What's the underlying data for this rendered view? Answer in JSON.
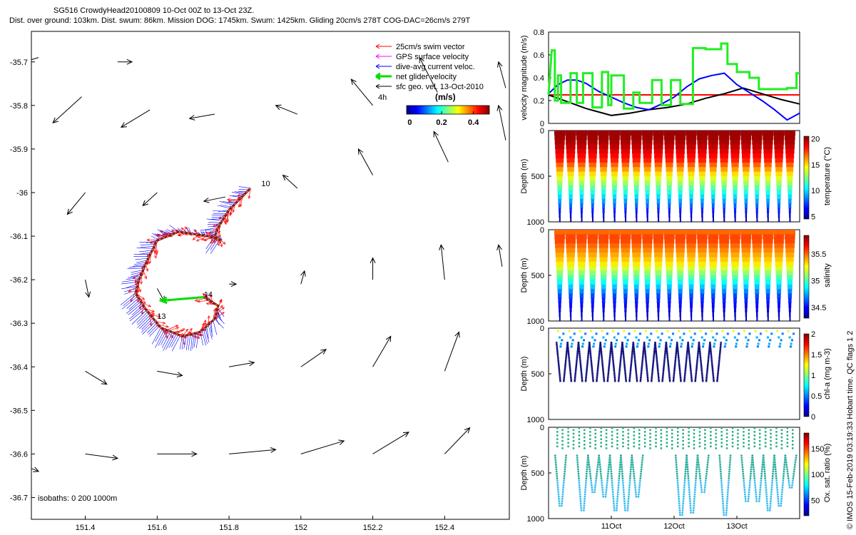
{
  "header": {
    "title_line1": "SG516 CrowdyHead20100809 10-Oct 00Z to 13-Oct 23Z.",
    "title_line2": "Dist. over ground: 103km. Dist. swum: 86km. Mission DOG: 1745km. Swum: 1425km. Gliding 20cm/s 278T COG-DAC=26cm/s 279T"
  },
  "credit": "© IMOS 15-Feb-2019 03:19:33 Hobart time. QC flags 1  2",
  "colors": {
    "swim": "#ff0000",
    "gps": "#ff00ff",
    "dac": "#0000ff",
    "net": "#00dd00",
    "sfc": "#000000",
    "track": "#8b1a1a",
    "threshold": "#ff0000"
  },
  "chart_data": [
    {
      "id": "map",
      "type": "scatter",
      "xlim": [
        151.25,
        152.58
      ],
      "ylim": [
        -36.75,
        -35.63
      ],
      "xticks": [
        "151.4",
        "151.6",
        "151.8",
        "152",
        "152.2",
        "152.4"
      ],
      "yticks": [
        "-35.7",
        "-35.8",
        "-35.9",
        "-36",
        "-36.1",
        "-36.2",
        "-36.3",
        "-36.4",
        "-36.5",
        "-36.6",
        "-36.7"
      ],
      "xtick_values": [
        151.4,
        151.6,
        151.8,
        152.0,
        152.2,
        152.4
      ],
      "ytick_values": [
        -35.7,
        -35.8,
        -35.9,
        -36.0,
        -36.1,
        -36.2,
        -36.3,
        -36.4,
        -36.5,
        -36.6,
        -36.7
      ],
      "legend": {
        "items": [
          "25cm/s swim vector",
          "GPS surface velocity",
          "dive-avg current veloc.",
          "net glider velocity",
          "sfc geo. vel. 13-Oct-2010"
        ],
        "extra_label": "4h"
      },
      "colorbar": {
        "label": "(m/s)",
        "ticks": [
          "0",
          "0.2",
          "0.4"
        ],
        "tick_values": [
          0,
          0.2,
          0.4
        ],
        "range": [
          -0.02,
          0.5
        ]
      },
      "isobaths_label": "isobaths: 0   200   1000m",
      "track_labels": [
        {
          "text": "10",
          "lon": 151.89,
          "lat": -35.985
        },
        {
          "text": "14",
          "lon": 151.73,
          "lat": -36.24
        },
        {
          "text": "13",
          "lon": 151.6,
          "lat": -36.29
        }
      ],
      "track": [
        [
          151.86,
          -35.99
        ],
        [
          151.8,
          -36.04
        ],
        [
          151.77,
          -36.08
        ],
        [
          151.76,
          -36.1
        ],
        [
          151.78,
          -36.11
        ],
        [
          151.74,
          -36.1
        ],
        [
          151.66,
          -36.09
        ],
        [
          151.6,
          -36.11
        ],
        [
          151.57,
          -36.16
        ],
        [
          151.55,
          -36.2
        ],
        [
          151.54,
          -36.23
        ],
        [
          151.57,
          -36.27
        ],
        [
          151.61,
          -36.31
        ],
        [
          151.67,
          -36.33
        ],
        [
          151.72,
          -36.32
        ],
        [
          151.76,
          -36.29
        ],
        [
          151.77,
          -36.26
        ],
        [
          151.73,
          -36.24
        ]
      ],
      "sfc_vectors": [
        [
          151.27,
          -35.69,
          -0.04,
          -0.01
        ],
        [
          151.49,
          -35.7,
          0.04,
          0.0
        ],
        [
          151.39,
          -35.78,
          -0.08,
          -0.06
        ],
        [
          151.58,
          -35.81,
          -0.08,
          -0.04
        ],
        [
          151.76,
          -35.82,
          -0.07,
          -0.01
        ],
        [
          151.99,
          -35.82,
          -0.06,
          0.02
        ],
        [
          152.2,
          -35.8,
          -0.06,
          0.06
        ],
        [
          152.38,
          -35.77,
          -0.05,
          0.08
        ],
        [
          152.57,
          -35.76,
          -0.02,
          0.06
        ],
        [
          152.57,
          -35.88,
          -0.02,
          0.08
        ],
        [
          152.41,
          -35.93,
          -0.04,
          0.07
        ],
        [
          152.2,
          -35.96,
          -0.04,
          0.06
        ],
        [
          151.99,
          -35.99,
          -0.04,
          0.03
        ],
        [
          151.79,
          -36.01,
          -0.06,
          -0.01
        ],
        [
          151.6,
          -36.0,
          -0.04,
          -0.03
        ],
        [
          151.4,
          -36.0,
          -0.05,
          -0.05
        ],
        [
          151.4,
          -36.2,
          0.01,
          -0.04
        ],
        [
          151.6,
          -36.22,
          0.02,
          -0.03
        ],
        [
          151.8,
          -36.21,
          0.02,
          0.0
        ],
        [
          152.0,
          -36.21,
          0.01,
          0.03
        ],
        [
          152.2,
          -36.2,
          0.0,
          0.05
        ],
        [
          152.4,
          -36.2,
          -0.01,
          0.08
        ],
        [
          152.56,
          -36.17,
          -0.01,
          0.05
        ],
        [
          151.4,
          -36.41,
          0.06,
          -0.03
        ],
        [
          151.6,
          -36.41,
          0.07,
          -0.01
        ],
        [
          151.8,
          -36.4,
          0.07,
          0.01
        ],
        [
          152.0,
          -36.4,
          0.07,
          0.04
        ],
        [
          152.2,
          -36.4,
          0.05,
          0.07
        ],
        [
          152.4,
          -36.41,
          0.04,
          0.09
        ],
        [
          151.4,
          -36.6,
          0.09,
          -0.01
        ],
        [
          151.6,
          -36.6,
          0.11,
          0.0
        ],
        [
          151.8,
          -36.6,
          0.13,
          0.01
        ],
        [
          152.0,
          -36.6,
          0.12,
          0.03
        ],
        [
          152.2,
          -36.6,
          0.1,
          0.05
        ],
        [
          152.4,
          -36.6,
          0.07,
          0.06
        ],
        [
          151.24,
          -36.63,
          0.03,
          -0.01
        ]
      ]
    },
    {
      "id": "velocity",
      "type": "line",
      "ylabel": "velocity magnitude (m/s)",
      "ylim": [
        0,
        0.8
      ],
      "yticks": [
        "0",
        "0.2",
        "0.4",
        "0.6",
        "0.8"
      ],
      "ytick_values": [
        0,
        0.2,
        0.4,
        0.6,
        0.8
      ],
      "xlim": [
        10.0,
        14.0
      ],
      "series": [
        {
          "color": "#ff0000",
          "width": 2,
          "x": [
            10.0,
            14.0
          ],
          "y": [
            0.25,
            0.25
          ]
        },
        {
          "color": "#000000",
          "width": 2,
          "x": [
            10.0,
            10.3,
            10.6,
            10.8,
            11.0,
            11.3,
            11.6,
            11.9,
            12.2,
            12.5,
            12.8,
            13.1,
            13.4,
            13.7,
            14.0
          ],
          "y": [
            0.25,
            0.19,
            0.13,
            0.1,
            0.07,
            0.09,
            0.12,
            0.14,
            0.17,
            0.22,
            0.26,
            0.31,
            0.26,
            0.21,
            0.17
          ]
        },
        {
          "color": "#0000ff",
          "width": 2,
          "x": [
            10.0,
            10.15,
            10.3,
            10.45,
            10.6,
            10.8,
            11.0,
            11.2,
            11.4,
            11.6,
            11.8,
            12.0,
            12.2,
            12.4,
            12.6,
            12.8,
            13.0,
            13.2,
            13.4,
            13.6,
            13.8,
            14.0
          ],
          "y": [
            0.26,
            0.34,
            0.38,
            0.38,
            0.35,
            0.28,
            0.23,
            0.18,
            0.14,
            0.12,
            0.17,
            0.23,
            0.32,
            0.39,
            0.42,
            0.44,
            0.34,
            0.27,
            0.2,
            0.12,
            0.03,
            0.09
          ]
        },
        {
          "color": "#22ee22",
          "width": 3,
          "x": [
            10.0,
            10.05,
            10.1,
            10.1,
            10.15,
            10.15,
            10.2,
            10.2,
            10.35,
            10.35,
            10.45,
            10.45,
            10.55,
            10.55,
            10.7,
            10.7,
            10.85,
            10.85,
            10.95,
            10.95,
            11.0,
            11.0,
            11.2,
            11.2,
            11.35,
            11.35,
            11.45,
            11.45,
            11.65,
            11.65,
            11.8,
            11.8,
            11.95,
            11.95,
            12.1,
            12.1,
            12.3,
            12.3,
            12.5,
            12.5,
            12.75,
            12.75,
            12.85,
            12.85,
            13.0,
            13.0,
            13.2,
            13.2,
            13.35,
            13.35,
            13.6,
            13.6,
            13.8,
            13.8,
            13.95,
            13.95,
            14.0
          ],
          "y": [
            0.25,
            0.64,
            0.64,
            0.2,
            0.2,
            0.42,
            0.42,
            0.18,
            0.18,
            0.44,
            0.44,
            0.18,
            0.18,
            0.44,
            0.44,
            0.14,
            0.14,
            0.45,
            0.45,
            0.16,
            0.16,
            0.42,
            0.42,
            0.13,
            0.13,
            0.27,
            0.27,
            0.18,
            0.18,
            0.38,
            0.38,
            0.16,
            0.16,
            0.38,
            0.38,
            0.17,
            0.17,
            0.66,
            0.66,
            0.65,
            0.65,
            0.7,
            0.7,
            0.52,
            0.52,
            0.45,
            0.45,
            0.4,
            0.4,
            0.3,
            0.3,
            0.3,
            0.3,
            0.31,
            0.31,
            0.44,
            0.44
          ]
        }
      ]
    },
    {
      "id": "temperature",
      "type": "scatter",
      "ylabel": "Depth (m)",
      "clabel": "temperature (°C)",
      "yticks": [
        "0",
        "500",
        "1000"
      ],
      "ytick_values": [
        0,
        500,
        1000
      ],
      "ylim": [
        0,
        1000
      ],
      "cticks": [
        "5",
        "10",
        "15",
        "20"
      ],
      "ctick_values": [
        5,
        10,
        15,
        20
      ],
      "crange": [
        4.5,
        20.5
      ],
      "profile_depths": [
        0,
        50,
        100,
        150,
        200,
        250,
        300,
        350,
        400,
        450,
        500,
        550,
        600,
        650,
        700,
        750,
        800,
        850,
        900,
        950
      ],
      "profile_values": [
        20,
        20,
        19.8,
        19.5,
        19,
        18.5,
        18,
        17,
        16,
        15,
        14,
        13,
        12,
        11,
        10,
        9,
        8,
        7,
        6,
        5.3
      ],
      "dives": 22,
      "max_depth": 960
    },
    {
      "id": "salinity",
      "type": "scatter",
      "ylabel": "Depth (m)",
      "clabel": "salinity",
      "yticks": [
        "0",
        "500",
        "1000"
      ],
      "ytick_values": [
        0,
        500,
        1000
      ],
      "ylim": [
        0,
        1000
      ],
      "cticks": [
        "34.5",
        "35",
        "35.5"
      ],
      "ctick_values": [
        34.5,
        35,
        35.5
      ],
      "crange": [
        34.3,
        35.85
      ],
      "profile_depths": [
        0,
        50,
        100,
        150,
        200,
        250,
        300,
        350,
        400,
        450,
        500,
        550,
        600,
        650,
        700,
        750,
        800,
        850,
        900,
        950
      ],
      "profile_values": [
        35.5,
        35.55,
        35.55,
        35.5,
        35.45,
        35.4,
        35.35,
        35.3,
        35.2,
        35.1,
        35.0,
        34.9,
        34.8,
        34.7,
        34.6,
        34.55,
        34.5,
        34.45,
        34.42,
        34.4
      ],
      "dives": 22,
      "max_depth": 960
    },
    {
      "id": "chla",
      "type": "scatter",
      "ylabel": "Depth (m)",
      "clabel": "chl-a (mg m-3)",
      "yticks": [
        "0",
        "500",
        "1000"
      ],
      "ytick_values": [
        0,
        500,
        1000
      ],
      "ylim": [
        0,
        1000
      ],
      "cticks": [
        "0",
        "0.5",
        "1",
        "1.5",
        "2"
      ],
      "ctick_values": [
        0,
        0.5,
        1,
        1.5,
        2
      ],
      "crange": [
        0,
        2
      ],
      "deep_dives": 15,
      "deep_max": 580,
      "sparse_dives": 22
    },
    {
      "id": "oxygen",
      "type": "scatter",
      "ylabel": "Depth (m)",
      "clabel": "Ox. sat. ratio (%)",
      "yticks": [
        "0",
        "500",
        "1000"
      ],
      "ytick_values": [
        0,
        500,
        1000
      ],
      "ylim": [
        0,
        1000
      ],
      "cticks": [
        "50",
        "100",
        "150"
      ],
      "ctick_values": [
        50,
        100,
        150
      ],
      "crange": [
        20,
        180
      ],
      "xticks": [
        "11Oct",
        "12Oct",
        "13Oct"
      ],
      "xtick_values": [
        11,
        12,
        13
      ],
      "xlim": [
        10.0,
        14.0
      ],
      "deep_dive_depths": [
        850,
        0,
        920,
        700,
        760,
        900,
        920,
        750,
        0,
        0,
        0,
        950,
        940,
        720,
        0,
        960,
        0,
        820,
        820,
        900,
        850,
        650
      ]
    }
  ]
}
